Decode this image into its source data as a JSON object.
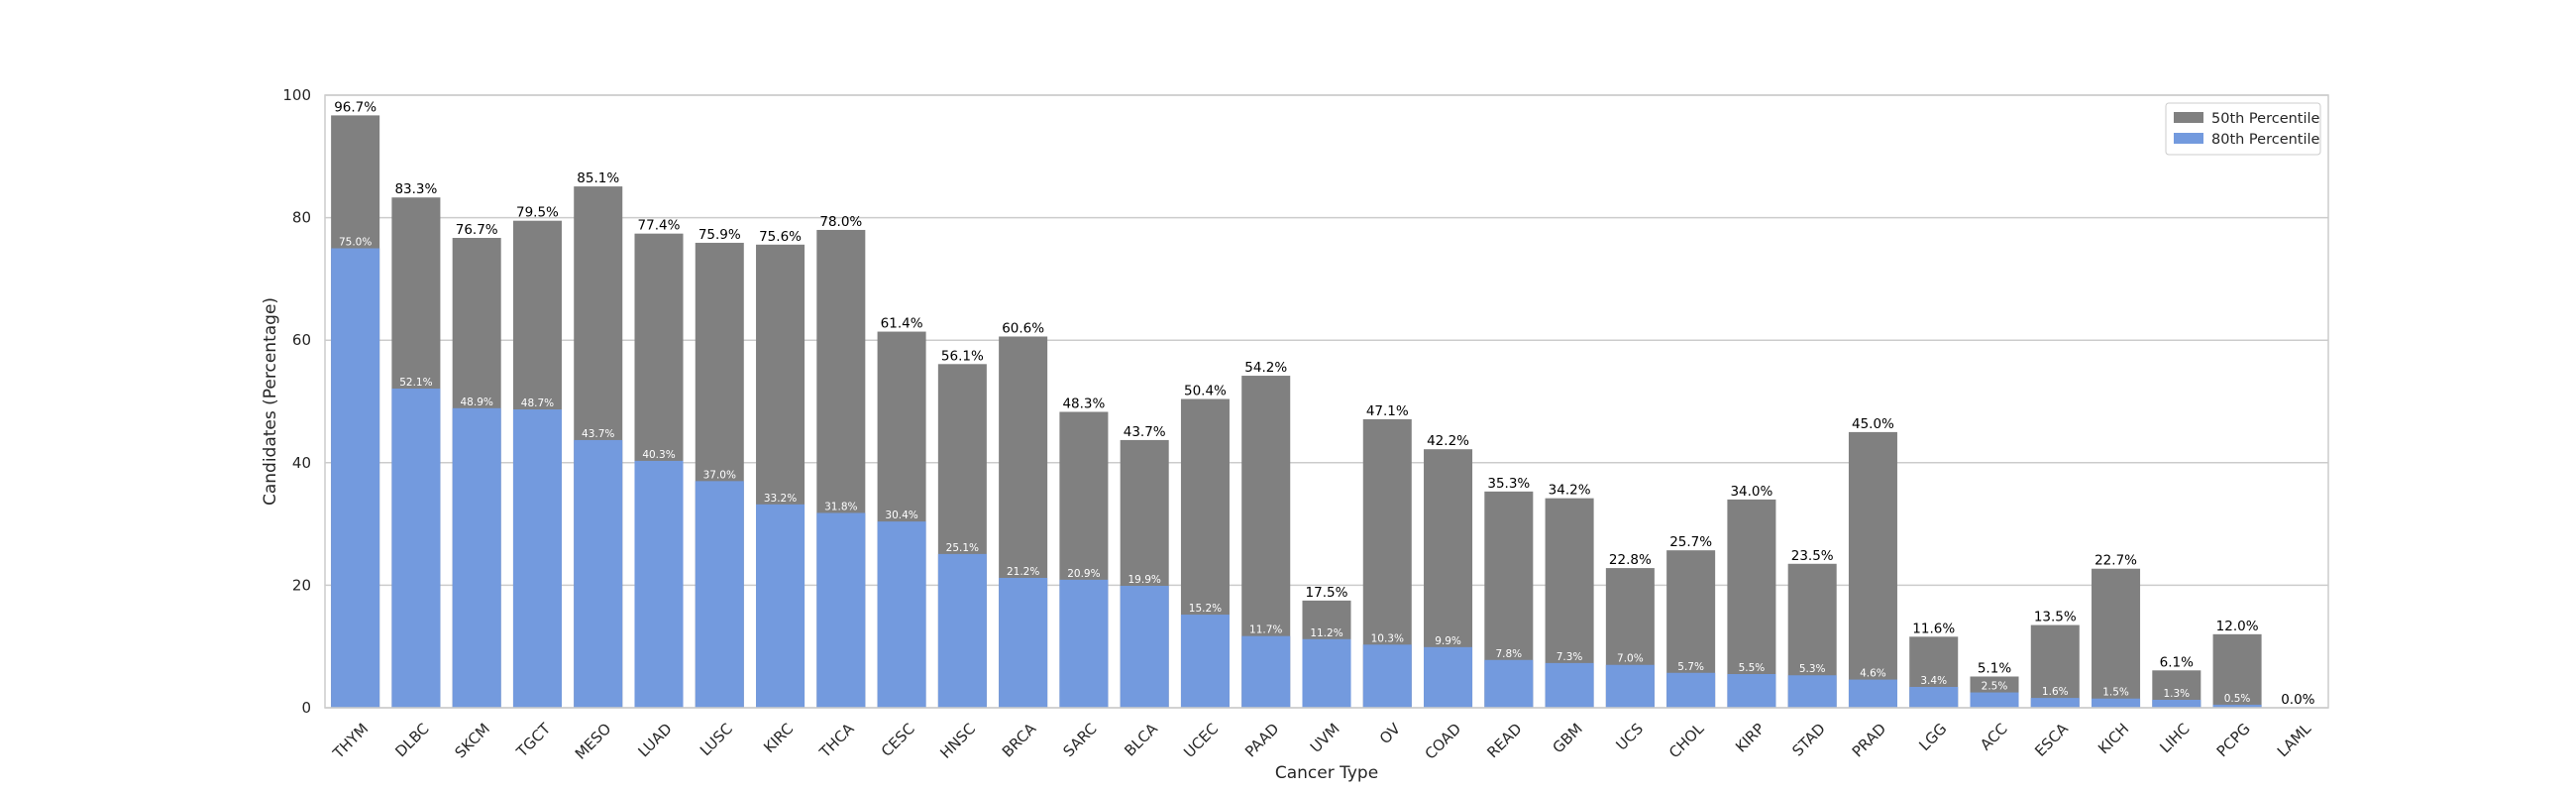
{
  "chart_data": {
    "type": "bar",
    "xlabel": "Cancer Type",
    "ylabel": "Candidates (Percentage)",
    "ylim": [
      0,
      100
    ],
    "yticks": [
      0,
      20,
      40,
      60,
      80,
      100
    ],
    "grid": "horizontal",
    "legend_position": "top-right",
    "categories": [
      "THYM",
      "DLBC",
      "SKCM",
      "TGCT",
      "MESO",
      "LUAD",
      "LUSC",
      "KIRC",
      "THCA",
      "CESC",
      "HNSC",
      "BRCA",
      "SARC",
      "BLCA",
      "UCEC",
      "PAAD",
      "UVM",
      "OV",
      "COAD",
      "READ",
      "GBM",
      "UCS",
      "CHOL",
      "KIRP",
      "STAD",
      "PRAD",
      "LGG",
      "ACC",
      "ESCA",
      "KICH",
      "LIHC",
      "PCPG",
      "LAML"
    ],
    "series": [
      {
        "name": "50th Percentile",
        "color": "#808080",
        "values": [
          96.7,
          83.3,
          76.7,
          79.5,
          85.1,
          77.4,
          75.9,
          75.6,
          78.0,
          61.4,
          56.1,
          60.6,
          48.3,
          43.7,
          50.4,
          54.2,
          17.5,
          47.1,
          42.2,
          35.3,
          34.2,
          22.8,
          25.7,
          34.0,
          23.5,
          45.0,
          11.6,
          5.1,
          13.5,
          22.7,
          6.1,
          12.0,
          0.0
        ],
        "labels": [
          "96.7%",
          "83.3%",
          "76.7%",
          "79.5%",
          "85.1%",
          "77.4%",
          "75.9%",
          "75.6%",
          "78.0%",
          "61.4%",
          "56.1%",
          "60.6%",
          "48.3%",
          "43.7%",
          "50.4%",
          "54.2%",
          "17.5%",
          "47.1%",
          "42.2%",
          "35.3%",
          "34.2%",
          "22.8%",
          "25.7%",
          "34.0%",
          "23.5%",
          "45.0%",
          "11.6%",
          "5.1%",
          "13.5%",
          "22.7%",
          "6.1%",
          "12.0%",
          "0.0%"
        ]
      },
      {
        "name": "80th Percentile",
        "color": "#739ade",
        "values": [
          75.0,
          52.1,
          48.9,
          48.7,
          43.7,
          40.3,
          37.0,
          33.2,
          31.8,
          30.4,
          25.1,
          21.2,
          20.9,
          19.9,
          15.2,
          11.7,
          11.2,
          10.3,
          9.9,
          7.8,
          7.3,
          7.0,
          5.7,
          5.5,
          5.3,
          4.6,
          3.4,
          2.5,
          1.6,
          1.5,
          1.3,
          0.5,
          0.0
        ],
        "labels": [
          "75.0%",
          "52.1%",
          "48.9%",
          "48.7%",
          "43.7%",
          "40.3%",
          "37.0%",
          "33.2%",
          "31.8%",
          "30.4%",
          "25.1%",
          "21.2%",
          "20.9%",
          "19.9%",
          "15.2%",
          "11.7%",
          "11.2%",
          "10.3%",
          "9.9%",
          "7.8%",
          "7.3%",
          "7.0%",
          "5.7%",
          "5.5%",
          "5.3%",
          "4.6%",
          "3.4%",
          "2.5%",
          "1.6%",
          "1.5%",
          "1.3%",
          "0.5%",
          ""
        ]
      }
    ]
  }
}
